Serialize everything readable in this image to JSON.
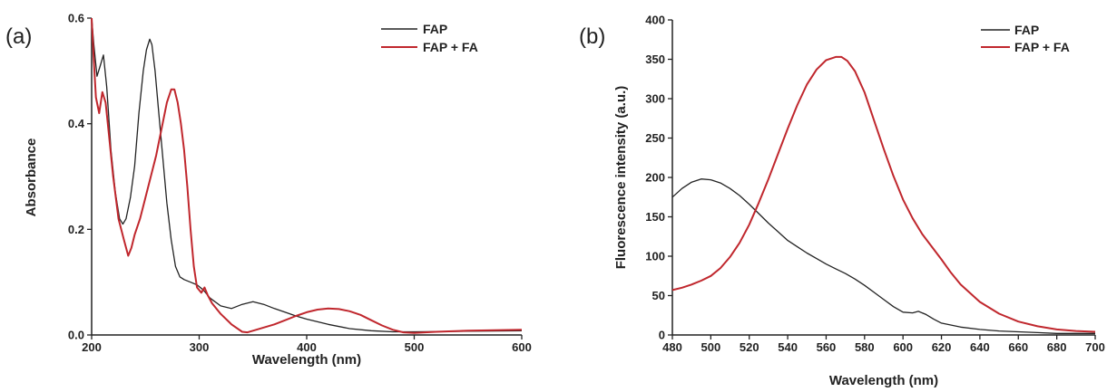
{
  "chart_data": [
    {
      "type": "line",
      "panel_label": "(a)",
      "xlabel": "Wavelength (nm)",
      "ylabel": "Absorbance",
      "xlim": [
        200,
        600
      ],
      "ylim": [
        0,
        0.6
      ],
      "xticks": [
        "200",
        "300",
        "400",
        "500",
        "600"
      ],
      "yticks": [
        "0.0",
        "0.2",
        "0.4",
        "0.6"
      ],
      "legend_position": "top-right",
      "grid": false,
      "series": [
        {
          "name": "FAP",
          "color": "#222222",
          "x": [
            200,
            202,
            205,
            208,
            211,
            214,
            218,
            222,
            226,
            229,
            232,
            236,
            240,
            244,
            248,
            251,
            254,
            256,
            259,
            262,
            266,
            270,
            274,
            278,
            282,
            286,
            292,
            298,
            304,
            310,
            320,
            330,
            340,
            350,
            360,
            370,
            380,
            390,
            400,
            420,
            440,
            460,
            480,
            500,
            550,
            600
          ],
          "y": [
            0.6,
            0.55,
            0.49,
            0.51,
            0.53,
            0.47,
            0.35,
            0.27,
            0.22,
            0.21,
            0.22,
            0.26,
            0.32,
            0.42,
            0.5,
            0.54,
            0.56,
            0.55,
            0.5,
            0.43,
            0.34,
            0.25,
            0.18,
            0.13,
            0.11,
            0.105,
            0.1,
            0.095,
            0.085,
            0.07,
            0.055,
            0.05,
            0.058,
            0.063,
            0.058,
            0.05,
            0.043,
            0.036,
            0.03,
            0.02,
            0.012,
            0.008,
            0.006,
            0.006,
            0.007,
            0.008
          ]
        },
        {
          "name": "FAP + FA",
          "color": "#c0272d",
          "x": [
            200,
            202,
            204,
            207,
            210,
            213,
            216,
            220,
            225,
            230,
            234,
            237,
            240,
            245,
            250,
            255,
            260,
            265,
            270,
            274,
            277,
            280,
            283,
            286,
            289,
            292,
            295,
            298,
            302,
            305,
            308,
            312,
            320,
            330,
            340,
            345,
            350,
            360,
            370,
            380,
            390,
            400,
            410,
            420,
            430,
            440,
            450,
            460,
            470,
            480,
            490,
            500,
            520,
            550,
            600
          ],
          "y": [
            0.6,
            0.52,
            0.45,
            0.42,
            0.46,
            0.44,
            0.38,
            0.3,
            0.22,
            0.18,
            0.15,
            0.165,
            0.19,
            0.22,
            0.26,
            0.3,
            0.34,
            0.39,
            0.44,
            0.465,
            0.465,
            0.44,
            0.4,
            0.35,
            0.28,
            0.2,
            0.13,
            0.09,
            0.08,
            0.09,
            0.075,
            0.06,
            0.04,
            0.02,
            0.006,
            0.005,
            0.008,
            0.014,
            0.02,
            0.028,
            0.036,
            0.043,
            0.048,
            0.05,
            0.049,
            0.045,
            0.038,
            0.028,
            0.018,
            0.01,
            0.005,
            0.004,
            0.006,
            0.008,
            0.01
          ]
        }
      ]
    },
    {
      "type": "line",
      "panel_label": "(b)",
      "xlabel": "Wavelength (nm)",
      "ylabel": "Fluorescence intensity (a.u.)",
      "xlim": [
        480,
        700
      ],
      "ylim": [
        0,
        400
      ],
      "xticks": [
        "480",
        "500",
        "520",
        "540",
        "560",
        "580",
        "600",
        "620",
        "640",
        "660",
        "680",
        "700"
      ],
      "yticks": [
        "0",
        "50",
        "100",
        "150",
        "200",
        "250",
        "300",
        "350",
        "400"
      ],
      "legend_position": "top-right",
      "grid": false,
      "series": [
        {
          "name": "FAP",
          "color": "#222222",
          "x": [
            480,
            485,
            490,
            495,
            500,
            505,
            510,
            515,
            520,
            525,
            530,
            535,
            540,
            545,
            550,
            555,
            560,
            565,
            570,
            575,
            580,
            585,
            590,
            595,
            600,
            605,
            608,
            612,
            616,
            620,
            630,
            640,
            650,
            660,
            670,
            680,
            690,
            700
          ],
          "y": [
            175,
            186,
            194,
            198,
            197,
            193,
            186,
            177,
            166,
            154,
            142,
            131,
            120,
            112,
            104,
            97,
            90,
            84,
            78,
            71,
            63,
            54,
            45,
            36,
            29,
            28,
            30,
            26,
            20,
            15,
            10,
            7,
            5,
            4,
            3,
            2,
            2,
            2
          ]
        },
        {
          "name": "FAP + FA",
          "color": "#c0272d",
          "x": [
            480,
            485,
            490,
            495,
            500,
            505,
            510,
            515,
            520,
            525,
            530,
            535,
            540,
            545,
            550,
            555,
            560,
            565,
            568,
            571,
            575,
            580,
            585,
            590,
            595,
            600,
            605,
            610,
            615,
            620,
            625,
            630,
            640,
            650,
            660,
            670,
            680,
            690,
            700
          ],
          "y": [
            57,
            60,
            64,
            69,
            75,
            85,
            99,
            117,
            140,
            168,
            198,
            230,
            262,
            292,
            318,
            337,
            349,
            353,
            353,
            348,
            335,
            308,
            272,
            236,
            202,
            172,
            148,
            128,
            112,
            96,
            79,
            64,
            42,
            27,
            17,
            11,
            7,
            5,
            4
          ]
        }
      ]
    }
  ]
}
